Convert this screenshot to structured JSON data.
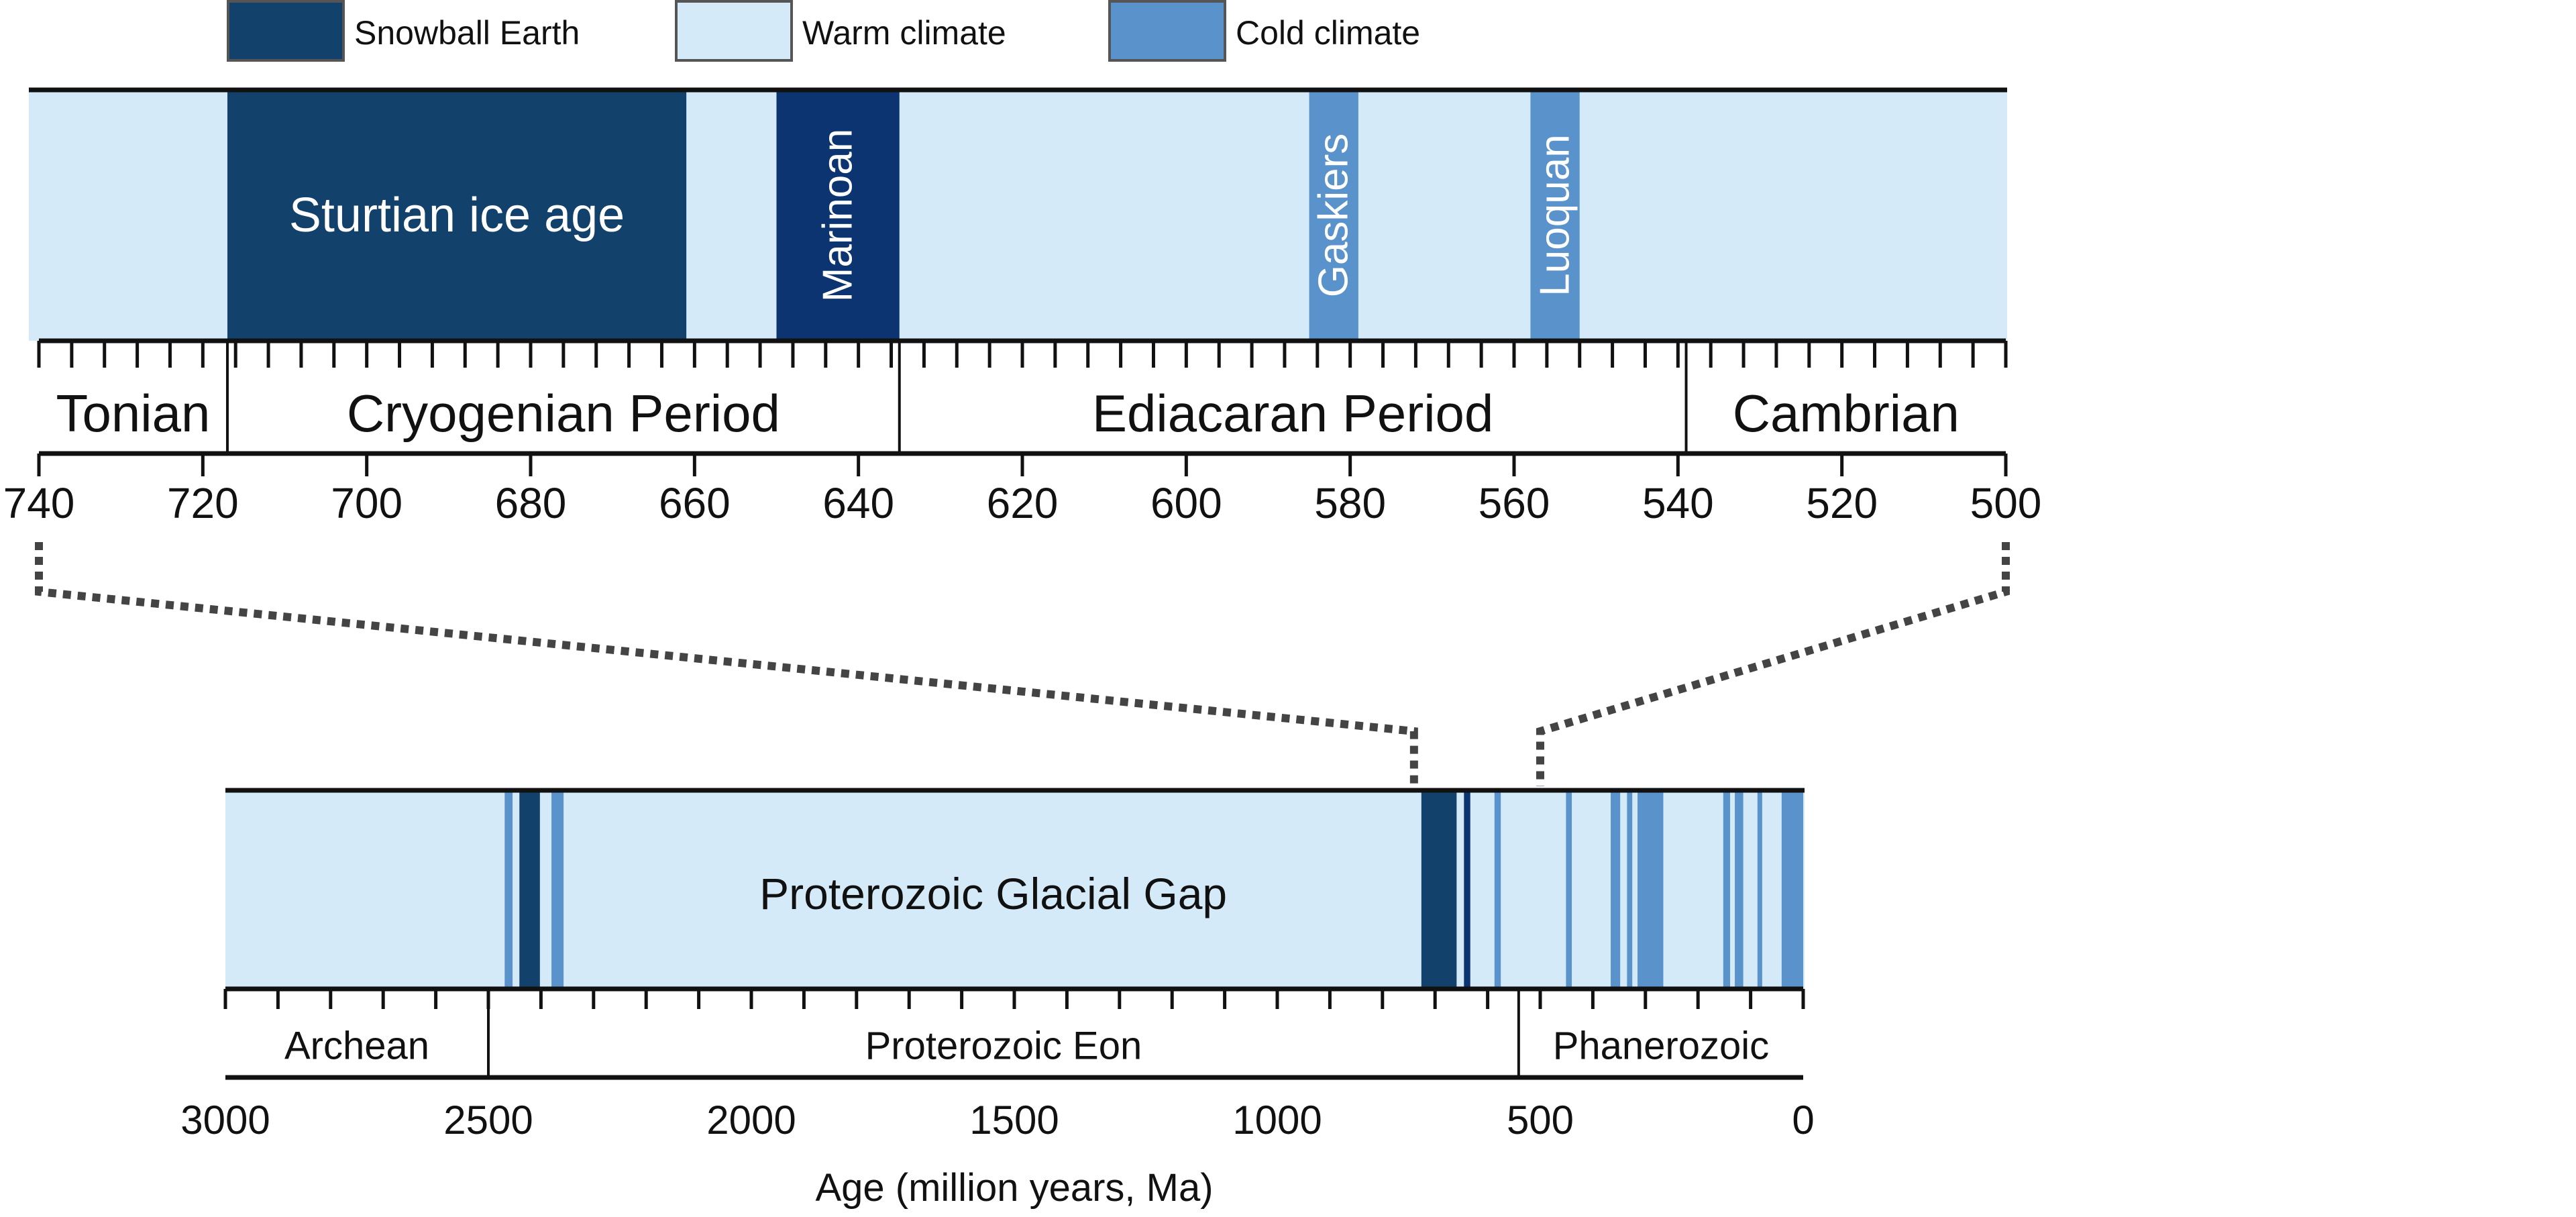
{
  "colors": {
    "snowball": "#12426b",
    "snowball_dark": "#0b3470",
    "warm": "#d4eaf8",
    "cold": "#5a93cb",
    "axis": "#111111"
  },
  "legend": [
    {
      "label": "Snowball Earth",
      "kind": "snowball"
    },
    {
      "label": "Warm climate",
      "kind": "warm"
    },
    {
      "label": "Cold climate",
      "kind": "cold"
    }
  ],
  "chart_data": [
    {
      "type": "timeline",
      "xlim": [
        740,
        500
      ],
      "xticks": [
        740,
        720,
        700,
        680,
        660,
        640,
        620,
        600,
        580,
        560,
        540,
        520,
        500
      ],
      "minor_tick_step": 4,
      "background": "warm",
      "intervals": [
        {
          "label": "Sturtian ice age",
          "start": 717,
          "end": 661,
          "kind": "snowball",
          "label_orientation": "horizontal"
        },
        {
          "label": "Marinoan",
          "start": 650,
          "end": 635,
          "kind": "snowball_dark",
          "label_orientation": "vertical"
        },
        {
          "label": "Gaskiers",
          "start": 585,
          "end": 579,
          "kind": "cold",
          "label_orientation": "vertical"
        },
        {
          "label": "Luoquan",
          "start": 558,
          "end": 552,
          "kind": "cold",
          "label_orientation": "vertical"
        }
      ],
      "periods": [
        {
          "label": "Tonian",
          "start": 740,
          "end": 717
        },
        {
          "label": "Cryogenian Period",
          "start": 717,
          "end": 635
        },
        {
          "label": "Ediacaran Period",
          "start": 635,
          "end": 539
        },
        {
          "label": "Cambrian",
          "start": 539,
          "end": 500
        }
      ]
    },
    {
      "type": "timeline",
      "xlim": [
        3000,
        0
      ],
      "xticks": [
        3000,
        2500,
        2000,
        1500,
        1000,
        500,
        0
      ],
      "minor_tick_step": 100,
      "xlabel": "Age (million years, Ma)",
      "background": "warm",
      "center_label": "Proterozoic Glacial Gap",
      "intervals": [
        {
          "start": 2469,
          "end": 2454,
          "kind": "cold"
        },
        {
          "start": 2441,
          "end": 2402,
          "kind": "snowball"
        },
        {
          "start": 2380,
          "end": 2357,
          "kind": "cold"
        },
        {
          "start": 726,
          "end": 659,
          "kind": "snowball"
        },
        {
          "start": 645,
          "end": 633,
          "kind": "snowball_dark"
        },
        {
          "start": 587,
          "end": 575,
          "kind": "cold"
        },
        {
          "start": 451,
          "end": 440,
          "kind": "cold"
        },
        {
          "start": 366,
          "end": 348,
          "kind": "cold"
        },
        {
          "start": 335,
          "end": 325,
          "kind": "cold"
        },
        {
          "start": 315,
          "end": 266,
          "kind": "cold"
        },
        {
          "start": 152,
          "end": 139,
          "kind": "cold"
        },
        {
          "start": 130,
          "end": 114,
          "kind": "cold"
        },
        {
          "start": 87,
          "end": 78,
          "kind": "cold"
        },
        {
          "start": 41,
          "end": 0,
          "kind": "cold"
        }
      ],
      "periods": [
        {
          "label": "Archean",
          "start": 3000,
          "end": 2500
        },
        {
          "label": "Proterozoic Eon",
          "start": 2500,
          "end": 541
        },
        {
          "label": "Phanerozoic",
          "start": 541,
          "end": 0
        }
      ],
      "zoom_window": [
        740,
        500
      ]
    }
  ]
}
